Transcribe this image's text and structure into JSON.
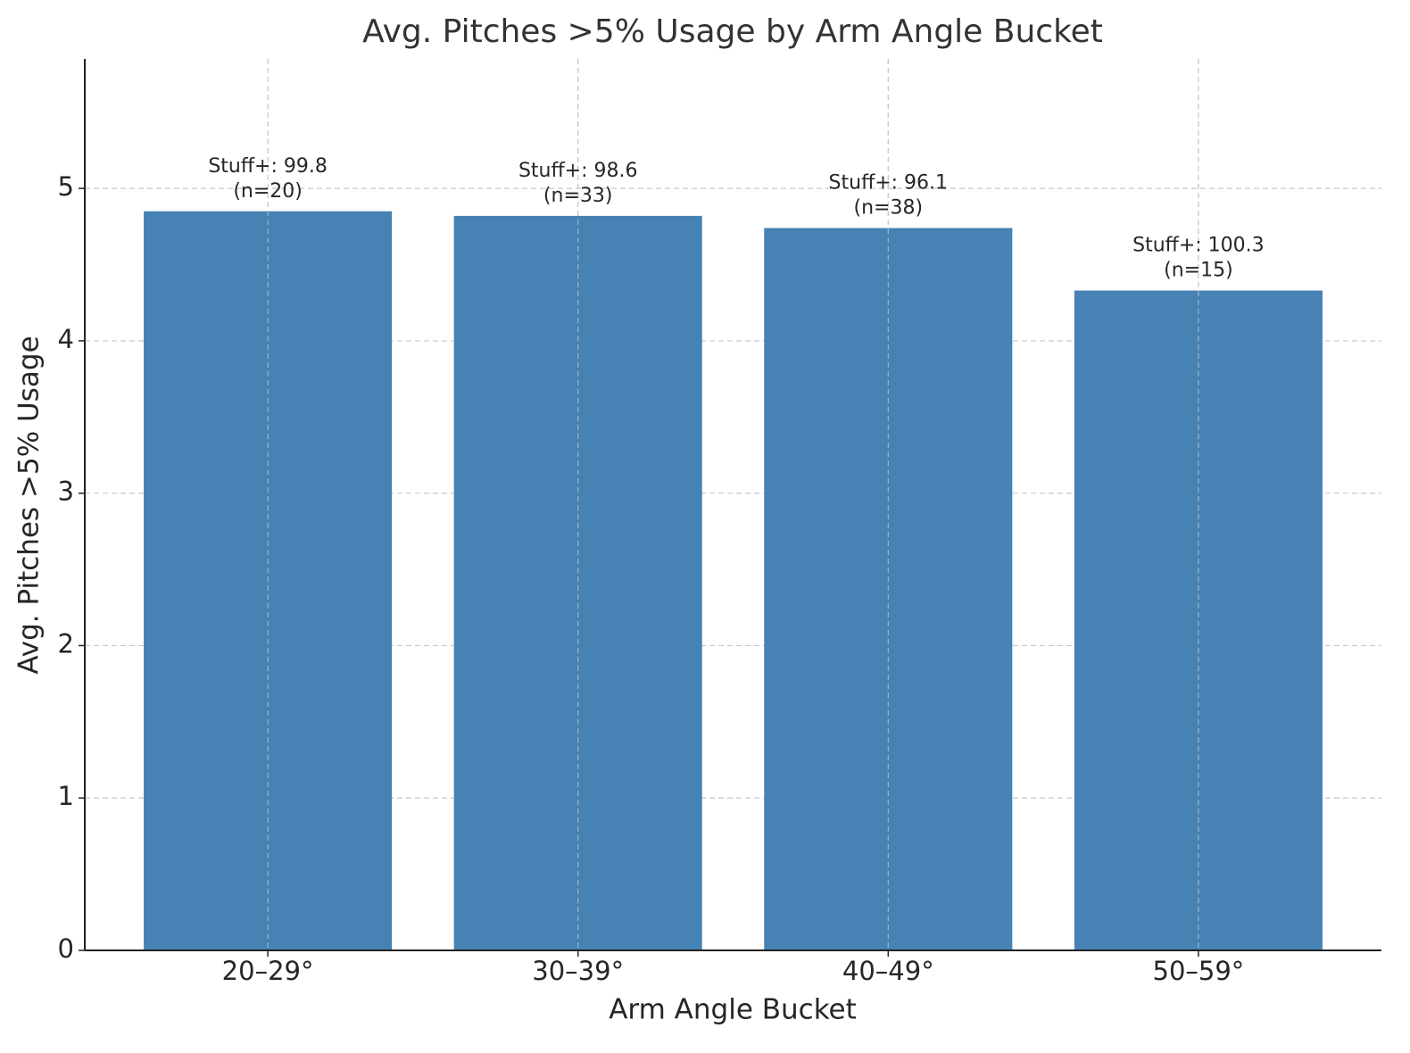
{
  "chart_data": {
    "type": "bar",
    "title": "Avg. Pitches >5% Usage by Arm Angle Bucket",
    "x_label": "Arm Angle Bucket",
    "y_label": "Avg. Pitches >5% Usage",
    "categories": [
      "20–29°",
      "30–39°",
      "40–49°",
      "50–59°"
    ],
    "values": [
      4.85,
      4.82,
      4.74,
      4.33
    ],
    "annotations": [
      [
        "Stuff+: 99.8",
        "(n=20)"
      ],
      [
        "Stuff+: 98.6",
        "(n=33)"
      ],
      [
        "Stuff+: 96.1",
        "(n=38)"
      ],
      [
        "Stuff+: 100.3",
        "(n=15)"
      ]
    ],
    "color": "#4682b4",
    "ylim": [
      0,
      5.85
    ],
    "yticks": [
      0,
      1,
      2,
      3,
      4,
      5
    ],
    "grid": true
  }
}
